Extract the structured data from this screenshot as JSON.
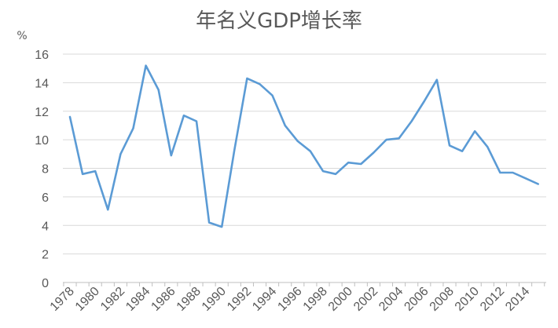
{
  "chart_data": {
    "type": "line",
    "title": "年名义GDP增长率",
    "ylabel": "%",
    "xlabel": "",
    "ylim": [
      0,
      16
    ],
    "yticks": [
      0,
      2,
      4,
      6,
      8,
      10,
      12,
      14,
      16
    ],
    "xtick_labels": [
      "1978",
      "1980",
      "1982",
      "1984",
      "1986",
      "1988",
      "1990",
      "1992",
      "1994",
      "1996",
      "1998",
      "2000",
      "2002",
      "2004",
      "2006",
      "2008",
      "2010",
      "2012",
      "2014"
    ],
    "grid": true,
    "legend": "none",
    "series": [
      {
        "color": "#5b9bd5",
        "x": [
          1978,
          1979,
          1980,
          1981,
          1982,
          1983,
          1984,
          1985,
          1986,
          1987,
          1988,
          1989,
          1990,
          1991,
          1992,
          1993,
          1994,
          1995,
          1996,
          1997,
          1998,
          1999,
          2000,
          2001,
          2002,
          2003,
          2004,
          2005,
          2006,
          2007,
          2008,
          2009,
          2010,
          2011,
          2012,
          2013,
          2014,
          2015
        ],
        "values": [
          11.6,
          7.6,
          7.8,
          5.1,
          9.0,
          10.8,
          15.2,
          13.5,
          8.9,
          11.7,
          11.3,
          4.2,
          3.9,
          9.3,
          14.3,
          13.9,
          13.1,
          11.0,
          9.9,
          9.2,
          7.8,
          7.6,
          8.4,
          8.3,
          9.1,
          10.0,
          10.1,
          11.3,
          12.7,
          14.2,
          9.6,
          9.2,
          10.6,
          9.5,
          7.7,
          7.7,
          7.3,
          6.9
        ]
      }
    ]
  }
}
